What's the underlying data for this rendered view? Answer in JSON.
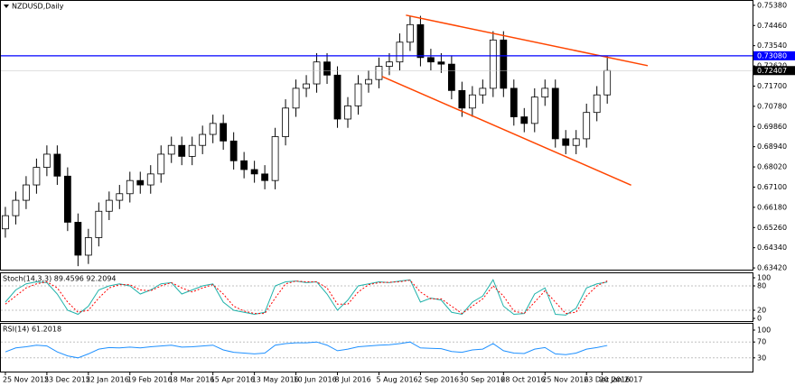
{
  "chart_data": [
    {
      "type": "candlestick",
      "title": "NZDUSD,Daily",
      "open": [
        0.652,
        0.658,
        0.665,
        0.672,
        0.68,
        0.686,
        0.676,
        0.655,
        0.64,
        0.648,
        0.66,
        0.665,
        0.668,
        0.674,
        0.672,
        0.677,
        0.686,
        0.69,
        0.685,
        0.69,
        0.695,
        0.7,
        0.692,
        0.683,
        0.679,
        0.677,
        0.674,
        0.694,
        0.707,
        0.716,
        0.718,
        0.728,
        0.722,
        0.702,
        0.708,
        0.718,
        0.72,
        0.726,
        0.728,
        0.737,
        0.745,
        0.73,
        0.728,
        0.727,
        0.715,
        0.707,
        0.713,
        0.716,
        0.738,
        0.716,
        0.703,
        0.7,
        0.712,
        0.716,
        0.693,
        0.69,
        0.693,
        0.705,
        0.713
      ],
      "high": [
        0.662,
        0.669,
        0.676,
        0.684,
        0.69,
        0.69,
        0.68,
        0.659,
        0.652,
        0.664,
        0.669,
        0.672,
        0.678,
        0.678,
        0.681,
        0.69,
        0.694,
        0.694,
        0.694,
        0.699,
        0.704,
        0.704,
        0.696,
        0.687,
        0.683,
        0.681,
        0.698,
        0.711,
        0.72,
        0.722,
        0.732,
        0.732,
        0.726,
        0.712,
        0.722,
        0.724,
        0.73,
        0.732,
        0.741,
        0.749,
        0.749,
        0.734,
        0.732,
        0.731,
        0.719,
        0.717,
        0.72,
        0.742,
        0.742,
        0.72,
        0.707,
        0.716,
        0.72,
        0.72,
        0.697,
        0.697,
        0.709,
        0.717,
        0.7308
      ],
      "low": [
        0.648,
        0.654,
        0.661,
        0.668,
        0.676,
        0.672,
        0.651,
        0.635,
        0.636,
        0.644,
        0.656,
        0.661,
        0.664,
        0.668,
        0.668,
        0.673,
        0.682,
        0.681,
        0.681,
        0.686,
        0.691,
        0.688,
        0.679,
        0.675,
        0.673,
        0.67,
        0.67,
        0.69,
        0.703,
        0.712,
        0.714,
        0.718,
        0.698,
        0.698,
        0.704,
        0.714,
        0.716,
        0.722,
        0.724,
        0.733,
        0.726,
        0.724,
        0.723,
        0.711,
        0.703,
        0.703,
        0.709,
        0.712,
        0.712,
        0.699,
        0.696,
        0.696,
        0.708,
        0.689,
        0.686,
        0.686,
        0.689,
        0.701,
        0.709
      ],
      "close": [
        0.658,
        0.665,
        0.672,
        0.68,
        0.686,
        0.676,
        0.655,
        0.64,
        0.648,
        0.66,
        0.665,
        0.668,
        0.674,
        0.672,
        0.677,
        0.686,
        0.69,
        0.685,
        0.69,
        0.695,
        0.7,
        0.692,
        0.683,
        0.679,
        0.677,
        0.674,
        0.694,
        0.707,
        0.716,
        0.718,
        0.728,
        0.722,
        0.702,
        0.708,
        0.718,
        0.72,
        0.726,
        0.728,
        0.737,
        0.745,
        0.73,
        0.728,
        0.727,
        0.715,
        0.707,
        0.713,
        0.716,
        0.738,
        0.716,
        0.703,
        0.7,
        0.712,
        0.716,
        0.693,
        0.69,
        0.693,
        0.705,
        0.713,
        0.72407
      ],
      "ylim": [
        0.633,
        0.7558
      ],
      "yticks": [
        {
          "value": 0.7538,
          "label": "0.75380"
        },
        {
          "value": 0.7446,
          "label": "0.74460"
        },
        {
          "value": 0.7354,
          "label": "0.73540"
        },
        {
          "value": 0.7262,
          "label": "0.72620"
        },
        {
          "value": 0.717,
          "label": "0.71700"
        },
        {
          "value": 0.7078,
          "label": "0.70780"
        },
        {
          "value": 0.6986,
          "label": "0.69860"
        },
        {
          "value": 0.6894,
          "label": "0.68940"
        },
        {
          "value": 0.6802,
          "label": "0.68020"
        },
        {
          "value": 0.671,
          "label": "0.67100"
        },
        {
          "value": 0.6618,
          "label": "0.66180"
        },
        {
          "value": 0.6526,
          "label": "0.65260"
        },
        {
          "value": 0.6434,
          "label": "0.64340"
        },
        {
          "value": 0.6342,
          "label": "0.63420"
        }
      ],
      "xlim": [
        -0.43,
        72
      ],
      "xticks": [
        {
          "value": 0,
          "label": "25 Nov 2015"
        },
        {
          "value": 4,
          "label": "23 Dec 2015"
        },
        {
          "value": 8,
          "label": "22 Jan 2016"
        },
        {
          "value": 12,
          "label": "19 Feb 2016"
        },
        {
          "value": 16,
          "label": "18 Mar 2016"
        },
        {
          "value": 20,
          "label": "15 Apr 2016"
        },
        {
          "value": 24,
          "label": "13 May 2016"
        },
        {
          "value": 28,
          "label": "10 Jun 2016"
        },
        {
          "value": 32,
          "label": "8 Jul 2016"
        },
        {
          "value": 36,
          "label": "5 Aug 2016"
        },
        {
          "value": 40,
          "label": "2 Sep 2016"
        },
        {
          "value": 44,
          "label": "30 Sep 2016"
        },
        {
          "value": 48,
          "label": "28 Oct 2016"
        },
        {
          "value": 52,
          "label": "25 Nov 2016"
        },
        {
          "value": 56,
          "label": "23 Dec 2016"
        },
        {
          "value": 57.5,
          "label": "20 Jan 2017"
        }
      ],
      "hline": {
        "value": 0.7308,
        "label": "0.73080",
        "color": "#0000ff"
      },
      "last_price": {
        "value": 0.72407,
        "label": "0.72407"
      },
      "trendlines": [
        {
          "x": [
            38.6,
            61.9
          ],
          "y": [
            0.7493,
            0.7263
          ],
          "color": "#ff4500"
        },
        {
          "x": [
            36.3,
            60.3
          ],
          "y": [
            0.7214,
            0.6719
          ],
          "color": "#ff4500"
        }
      ]
    },
    {
      "type": "line",
      "title": "Stoch(14,3,3) 89.4596 92.2094",
      "series": [
        {
          "color": "#20b2aa",
          "values": [
            40,
            70,
            85,
            90,
            88,
            60,
            20,
            10,
            30,
            70,
            80,
            85,
            80,
            60,
            70,
            85,
            88,
            60,
            70,
            80,
            85,
            40,
            20,
            15,
            10,
            15,
            80,
            90,
            92,
            88,
            90,
            60,
            20,
            45,
            80,
            85,
            90,
            88,
            92,
            95,
            40,
            50,
            45,
            15,
            10,
            40,
            55,
            95,
            30,
            10,
            12,
            60,
            75,
            10,
            8,
            25,
            75,
            85,
            89.4596
          ]
        },
        {
          "color": "#ff0000",
          "dashed": true,
          "values": [
            35,
            55,
            75,
            85,
            90,
            75,
            40,
            15,
            20,
            50,
            75,
            83,
            83,
            70,
            68,
            80,
            88,
            75,
            65,
            75,
            83,
            60,
            30,
            18,
            12,
            12,
            50,
            85,
            92,
            90,
            90,
            75,
            35,
            35,
            65,
            83,
            88,
            89,
            90,
            94,
            65,
            48,
            48,
            30,
            12,
            30,
            48,
            80,
            55,
            18,
            12,
            40,
            68,
            40,
            12,
            15,
            55,
            80,
            92.2094
          ]
        }
      ],
      "ylim": [
        0,
        100
      ],
      "yticks": [
        100,
        80,
        20,
        0
      ],
      "levels": [
        80,
        20
      ]
    },
    {
      "type": "line",
      "title": "RSI(14) 61.2018",
      "series": [
        {
          "color": "#1e90ff",
          "values": [
            45,
            55,
            58,
            62,
            60,
            45,
            35,
            30,
            40,
            52,
            56,
            55,
            57,
            55,
            58,
            60,
            62,
            57,
            58,
            60,
            62,
            50,
            44,
            42,
            40,
            42,
            62,
            66,
            68,
            68,
            70,
            62,
            48,
            52,
            58,
            60,
            62,
            63,
            66,
            70,
            55,
            54,
            53,
            46,
            44,
            50,
            52,
            66,
            48,
            42,
            41,
            52,
            56,
            40,
            38,
            42,
            52,
            56,
            61.2018
          ]
        }
      ],
      "ylim": [
        0,
        100
      ],
      "yticks": [
        100,
        70,
        30
      ],
      "levels": [
        70,
        30
      ]
    }
  ]
}
